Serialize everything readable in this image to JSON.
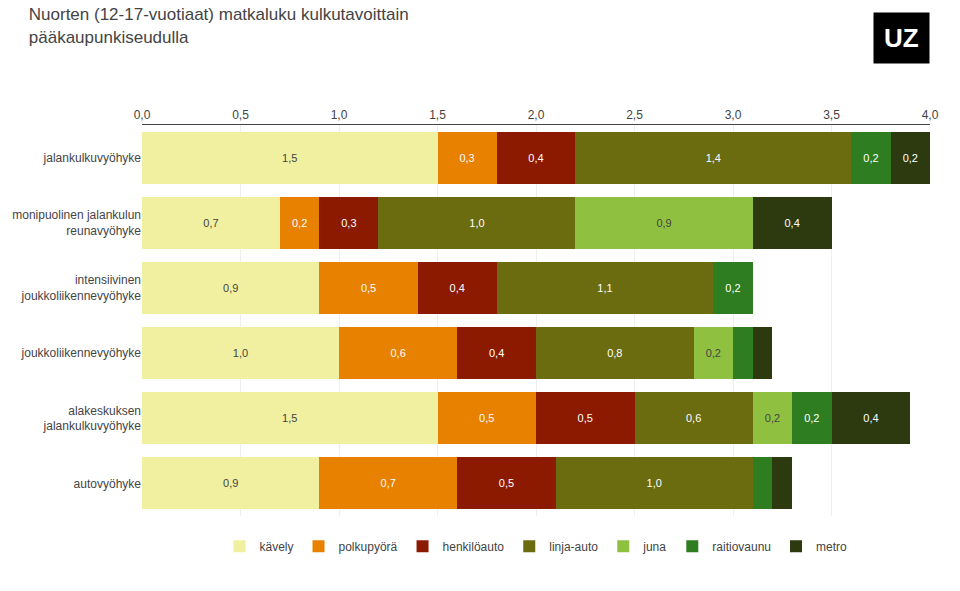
{
  "chart_data": {
    "type": "bar",
    "orientation": "horizontal",
    "stacked": true,
    "data_labels": true,
    "grid": true,
    "legend": "bottom",
    "title": "Nuorten (12-17-vuotiaat) matkaluku kulkutavoittain\npääkaupunkiseudulla",
    "annotations": [
      "UZ"
    ],
    "categories": [
      "jalankulkuvyöhyke",
      "monipuolinen jalankulun\nreunavyöhyke",
      "intensiivinen\njoukkoliikennevyöhyke",
      "joukkoliikennevyöhyke",
      "alakeskuksen\njalankulkuvyöhyke",
      "autovyöhyke"
    ],
    "series": [
      {
        "name": "kävely",
        "color": "#f0f0a0",
        "values": [
          1.5,
          0.7,
          0.9,
          1.0,
          1.5,
          0.9
        ],
        "value_labels": [
          "1,5",
          "0,7",
          "0,9",
          "1,0",
          "1,5",
          "0,9"
        ]
      },
      {
        "name": "polkupyörä",
        "color": "#e88000",
        "values": [
          0.3,
          0.2,
          0.5,
          0.6,
          0.5,
          0.7
        ],
        "value_labels": [
          "0,3",
          "0,2",
          "0,5",
          "0,6",
          "0,5",
          "0,7"
        ]
      },
      {
        "name": "henkilöauto",
        "color": "#8b1a00",
        "values": [
          0.4,
          0.3,
          0.4,
          0.4,
          0.5,
          0.5
        ],
        "value_labels": [
          "0,4",
          "0,3",
          "0,4",
          "0,4",
          "0,5",
          "0,5"
        ]
      },
      {
        "name": "linja-auto",
        "color": "#6b6b10",
        "values": [
          1.4,
          1.0,
          1.1,
          0.8,
          0.6,
          1.0
        ],
        "value_labels": [
          "1,4",
          "1,0",
          "1,1",
          "0,8",
          "0,6",
          "1,0"
        ]
      },
      {
        "name": "juna",
        "color": "#90c040",
        "values": [
          0.0,
          0.9,
          0.0,
          0.2,
          0.2,
          0.0
        ],
        "value_labels": [
          null,
          "0,9",
          null,
          "0,2",
          "0,2",
          null
        ]
      },
      {
        "name": "raitiovaunu",
        "color": "#2e7d20",
        "values": [
          0.2,
          0.0,
          0.2,
          0.1,
          0.2,
          0.1
        ],
        "value_labels": [
          "0,2",
          null,
          "0,2",
          null,
          "0,2",
          null
        ]
      },
      {
        "name": "metro",
        "color": "#2d3a10",
        "values": [
          0.2,
          0.4,
          0.0,
          0.1,
          0.4,
          0.1
        ],
        "value_labels": [
          "0,2",
          "0,4",
          null,
          null,
          "0,4",
          null
        ]
      }
    ],
    "xlim": [
      0,
      4.0
    ],
    "xticks": [
      {
        "value": 0.0,
        "label": "0,0"
      },
      {
        "value": 0.5,
        "label": "0,5"
      },
      {
        "value": 1.0,
        "label": "1,0"
      },
      {
        "value": 1.5,
        "label": "1,5"
      },
      {
        "value": 2.0,
        "label": "2,0"
      },
      {
        "value": 2.5,
        "label": "2,5"
      },
      {
        "value": 3.0,
        "label": "3,0"
      },
      {
        "value": 3.5,
        "label": "3,5"
      },
      {
        "value": 4.0,
        "label": "4,0"
      }
    ]
  }
}
